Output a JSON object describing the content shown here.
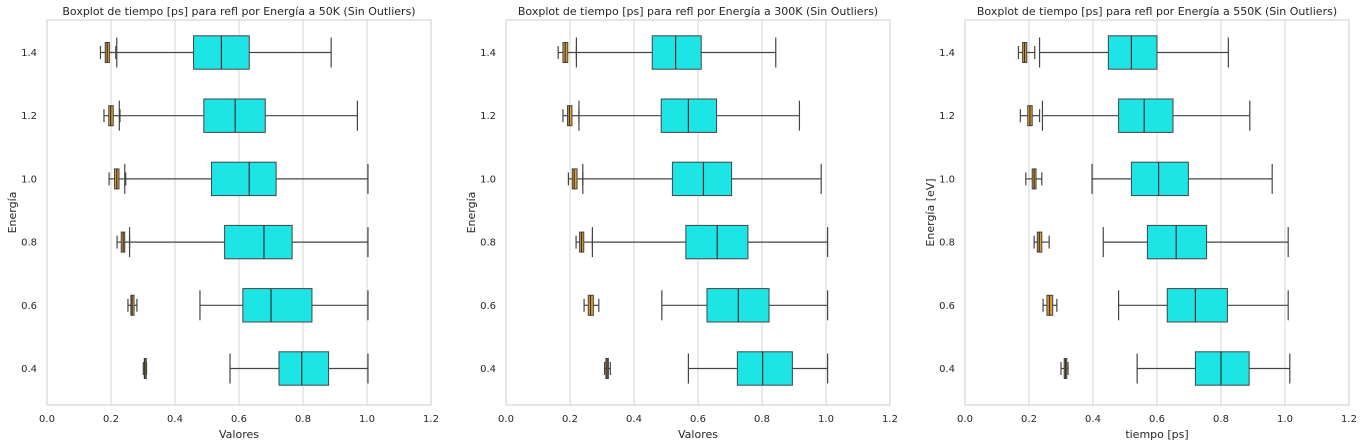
{
  "chart_data": [
    {
      "type": "boxplot",
      "title": "Boxplot de tiempo [ps] para refl por Energía a 50K (Sin Outliers)",
      "xlabel": "Valores",
      "ylabel": "Energía",
      "xlim": [
        0,
        1.2
      ],
      "xticks": [
        "0.0",
        "0.2",
        "0.4",
        "0.6",
        "0.8",
        "1.0",
        "1.2"
      ],
      "categories": [
        "1.4",
        "1.2",
        "1.0",
        "0.8",
        "0.6",
        "0.4"
      ],
      "grid": "vertical",
      "series": [
        {
          "color": "#e0a030",
          "boxes": [
            {
              "min": 0.167,
              "q1": 0.182,
              "median": 0.188,
              "q3": 0.195,
              "max": 0.215
            },
            {
              "min": 0.178,
              "q1": 0.193,
              "median": 0.199,
              "q3": 0.207,
              "max": 0.228
            },
            {
              "min": 0.194,
              "q1": 0.211,
              "median": 0.218,
              "q3": 0.225,
              "max": 0.246
            },
            {
              "min": 0.219,
              "q1": 0.232,
              "median": 0.238,
              "q3": 0.243,
              "max": 0.258
            },
            {
              "min": 0.253,
              "q1": 0.262,
              "median": 0.266,
              "q3": 0.272,
              "max": 0.281
            },
            {
              "min": 0.301,
              "q1": 0.304,
              "median": 0.306,
              "q3": 0.308,
              "max": 0.311
            }
          ]
        },
        {
          "color": "#1de5e5",
          "boxes": [
            {
              "min": 0.218,
              "q1": 0.458,
              "median": 0.545,
              "q3": 0.632,
              "max": 0.888
            },
            {
              "min": 0.226,
              "q1": 0.49,
              "median": 0.588,
              "q3": 0.682,
              "max": 0.97
            },
            {
              "min": 0.243,
              "q1": 0.514,
              "median": 0.632,
              "q3": 0.716,
              "max": 1.003
            },
            {
              "min": 0.258,
              "q1": 0.555,
              "median": 0.678,
              "q3": 0.766,
              "max": 1.003
            },
            {
              "min": 0.478,
              "q1": 0.612,
              "median": 0.7,
              "q3": 0.828,
              "max": 1.003
            },
            {
              "min": 0.572,
              "q1": 0.725,
              "median": 0.796,
              "q3": 0.88,
              "max": 1.003
            }
          ]
        }
      ]
    },
    {
      "type": "boxplot",
      "title": "Boxplot de tiempo [ps] para refl por Energía a 300K (Sin Outliers)",
      "xlabel": "Valores",
      "ylabel": "Energía",
      "xlim": [
        0,
        1.2
      ],
      "xticks": [
        "0.0",
        "0.2",
        "0.4",
        "0.6",
        "0.8",
        "1.0",
        "1.2"
      ],
      "categories": [
        "1.4",
        "1.2",
        "1.0",
        "0.8",
        "0.6",
        "0.4"
      ],
      "grid": "vertical",
      "series": [
        {
          "color": "#e0a030",
          "boxes": [
            {
              "min": 0.163,
              "q1": 0.178,
              "median": 0.185,
              "q3": 0.193,
              "max": 0.22
            },
            {
              "min": 0.178,
              "q1": 0.192,
              "median": 0.198,
              "q3": 0.206,
              "max": 0.228
            },
            {
              "min": 0.195,
              "q1": 0.207,
              "median": 0.213,
              "q3": 0.222,
              "max": 0.24
            },
            {
              "min": 0.219,
              "q1": 0.23,
              "median": 0.236,
              "q3": 0.243,
              "max": 0.27
            },
            {
              "min": 0.244,
              "q1": 0.257,
              "median": 0.264,
              "q3": 0.273,
              "max": 0.29
            },
            {
              "min": 0.308,
              "q1": 0.312,
              "median": 0.316,
              "q3": 0.32,
              "max": 0.326
            }
          ]
        },
        {
          "color": "#1de5e5",
          "boxes": [
            {
              "min": 0.22,
              "q1": 0.457,
              "median": 0.53,
              "q3": 0.61,
              "max": 0.843
            },
            {
              "min": 0.228,
              "q1": 0.485,
              "median": 0.57,
              "q3": 0.658,
              "max": 0.917
            },
            {
              "min": 0.24,
              "q1": 0.52,
              "median": 0.617,
              "q3": 0.705,
              "max": 0.985
            },
            {
              "min": 0.27,
              "q1": 0.562,
              "median": 0.66,
              "q3": 0.756,
              "max": 1.005
            },
            {
              "min": 0.487,
              "q1": 0.628,
              "median": 0.726,
              "q3": 0.822,
              "max": 1.005
            },
            {
              "min": 0.57,
              "q1": 0.723,
              "median": 0.802,
              "q3": 0.895,
              "max": 1.005
            }
          ]
        }
      ]
    },
    {
      "type": "boxplot",
      "title": "Boxplot de tiempo [ps] para refl por Energía a 550K (Sin Outliers)",
      "xlabel": "tiempo [ps]",
      "ylabel": "Energía [eV]",
      "xlim": [
        0,
        1.2
      ],
      "xticks": [
        "0.0",
        "0.2",
        "0.4",
        "0.6",
        "0.8",
        "1.0",
        "1.2"
      ],
      "categories": [
        "1.4",
        "1.2",
        "1.0",
        "0.8",
        "0.6",
        "0.4"
      ],
      "grid": "vertical",
      "series": [
        {
          "color": "#e0a030",
          "boxes": [
            {
              "min": 0.167,
              "q1": 0.18,
              "median": 0.186,
              "q3": 0.193,
              "max": 0.218
            },
            {
              "min": 0.173,
              "q1": 0.196,
              "median": 0.203,
              "q3": 0.21,
              "max": 0.233
            },
            {
              "min": 0.19,
              "q1": 0.21,
              "median": 0.216,
              "q3": 0.222,
              "max": 0.24
            },
            {
              "min": 0.216,
              "q1": 0.226,
              "median": 0.232,
              "q3": 0.24,
              "max": 0.263
            },
            {
              "min": 0.244,
              "q1": 0.256,
              "median": 0.264,
              "q3": 0.274,
              "max": 0.287
            },
            {
              "min": 0.3,
              "q1": 0.31,
              "median": 0.314,
              "q3": 0.318,
              "max": 0.322
            }
          ]
        },
        {
          "color": "#1de5e5",
          "boxes": [
            {
              "min": 0.233,
              "q1": 0.448,
              "median": 0.52,
              "q3": 0.6,
              "max": 0.823
            },
            {
              "min": 0.242,
              "q1": 0.48,
              "median": 0.56,
              "q3": 0.65,
              "max": 0.89
            },
            {
              "min": 0.397,
              "q1": 0.52,
              "median": 0.605,
              "q3": 0.698,
              "max": 0.96
            },
            {
              "min": 0.432,
              "q1": 0.57,
              "median": 0.66,
              "q3": 0.755,
              "max": 1.01
            },
            {
              "min": 0.48,
              "q1": 0.632,
              "median": 0.72,
              "q3": 0.82,
              "max": 1.01
            },
            {
              "min": 0.538,
              "q1": 0.72,
              "median": 0.8,
              "q3": 0.888,
              "max": 1.015
            }
          ]
        }
      ]
    }
  ]
}
